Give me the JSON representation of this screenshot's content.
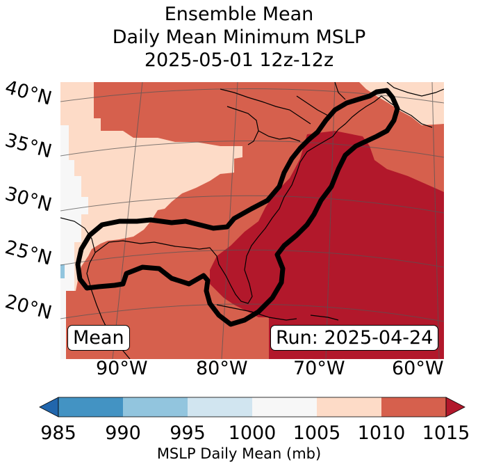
{
  "title": {
    "line1": "Ensemble Mean",
    "line2": "Daily Mean Minimum MSLP",
    "line3": "2025-05-01 12z-12z"
  },
  "lat_labels": [
    "40°N",
    "35°N",
    "30°N",
    "25°N",
    "20°N"
  ],
  "lon_labels": [
    "90°W",
    "80°W",
    "70°W",
    "60°W"
  ],
  "badges": {
    "left": "Mean",
    "right": "Run: 2025-04-24"
  },
  "colorbar": {
    "ticks": [
      "985",
      "990",
      "995",
      "1000",
      "1005",
      "1010",
      "1015"
    ],
    "label": "MSLP Daily Mean (mb)",
    "colors": [
      "#2166ac",
      "#4393c3",
      "#92c5de",
      "#d1e5f0",
      "#f7f7f7",
      "#fddbc7",
      "#d6604d",
      "#b2182b"
    ]
  },
  "map_colors": {
    "c1000": "#f7f7f7",
    "c1005": "#fddbc7",
    "c1010": "#d6604d",
    "c1015": "#b2182b",
    "c990": "#92c5de"
  }
}
